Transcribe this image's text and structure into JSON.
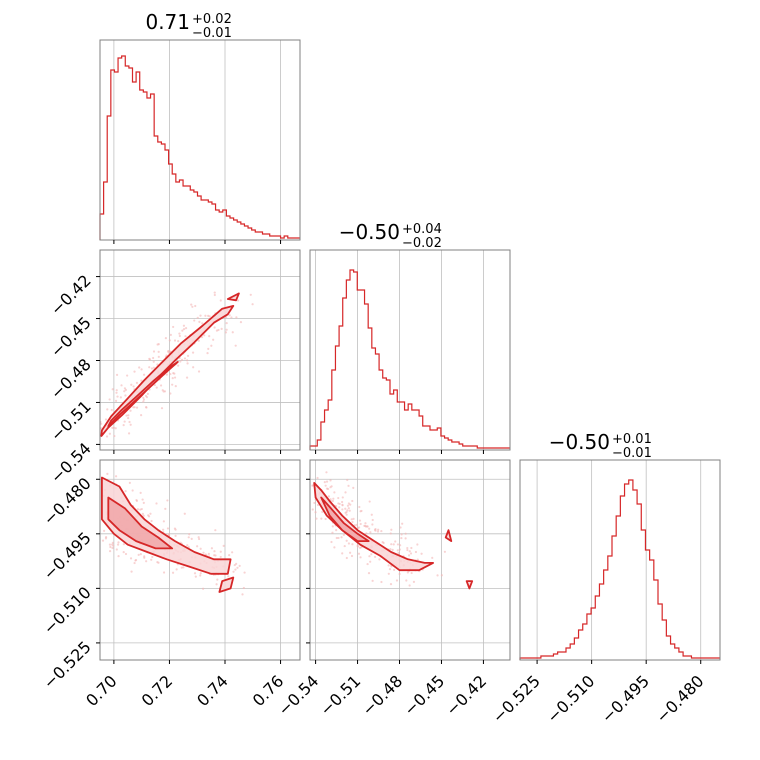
{
  "colors": {
    "series": "#d62728",
    "fill_light": "#f9d5d6",
    "fill_mid": "#f0a6a8",
    "scatter": "#f3b5b6",
    "grid": "#c0c0c0",
    "frame": "#808080"
  },
  "chart_data": [
    {
      "type": "histogram",
      "panel": "row1-col1",
      "title": {
        "value": "0.71",
        "plus": "+0.02",
        "minus": "−0.01"
      },
      "xlim": [
        0.695,
        0.767
      ],
      "grid": true,
      "bins": {
        "start": 0.695,
        "width": 0.0013,
        "counts": [
          0.13,
          0.29,
          0.62,
          0.85,
          0.84,
          0.91,
          0.92,
          0.87,
          0.86,
          0.79,
          0.84,
          0.75,
          0.74,
          0.71,
          0.73,
          0.52,
          0.49,
          0.48,
          0.45,
          0.38,
          0.33,
          0.29,
          0.3,
          0.27,
          0.27,
          0.25,
          0.24,
          0.22,
          0.2,
          0.2,
          0.19,
          0.18,
          0.15,
          0.14,
          0.15,
          0.12,
          0.11,
          0.1,
          0.09,
          0.08,
          0.07,
          0.06,
          0.05,
          0.04,
          0.04,
          0.03,
          0.03,
          0.02,
          0.02,
          0.02,
          0.01,
          0.02,
          0.01,
          0.01,
          0.01,
          0.01
        ]
      },
      "x_ticks": [
        {
          "value": 0.7,
          "label": "0.70"
        },
        {
          "value": 0.72,
          "label": "0.72"
        },
        {
          "value": 0.74,
          "label": "0.74"
        },
        {
          "value": 0.76,
          "label": "0.76"
        }
      ]
    },
    {
      "type": "histogram",
      "panel": "row2-col2",
      "title": {
        "value": "−0.50",
        "plus": "+0.04",
        "minus": "−0.02"
      },
      "xlim": [
        -0.544,
        -0.401
      ],
      "grid": true,
      "bins": {
        "start": -0.544,
        "width": 0.0026,
        "counts": [
          0.02,
          0.02,
          0.05,
          0.14,
          0.2,
          0.25,
          0.4,
          0.52,
          0.62,
          0.76,
          0.85,
          0.9,
          0.89,
          0.8,
          0.8,
          0.73,
          0.61,
          0.51,
          0.48,
          0.4,
          0.36,
          0.35,
          0.28,
          0.3,
          0.24,
          0.24,
          0.2,
          0.23,
          0.2,
          0.2,
          0.17,
          0.12,
          0.12,
          0.1,
          0.1,
          0.11,
          0.07,
          0.06,
          0.05,
          0.04,
          0.04,
          0.03,
          0.02,
          0.02,
          0.02,
          0.02,
          0.01,
          0.01,
          0.01,
          0.01,
          0.01,
          0.01,
          0.01,
          0.01,
          0.01
        ]
      },
      "x_ticks": [
        {
          "value": -0.54,
          "label": "−0.54"
        },
        {
          "value": -0.51,
          "label": "−0.51"
        },
        {
          "value": -0.48,
          "label": "−0.48"
        },
        {
          "value": -0.45,
          "label": "−0.45"
        },
        {
          "value": -0.42,
          "label": "−0.42"
        }
      ]
    },
    {
      "type": "histogram",
      "panel": "row3-col3",
      "title": {
        "value": "−0.50",
        "plus": "+0.01",
        "minus": "−0.01"
      },
      "xlim": [
        -0.5297,
        -0.4747
      ],
      "grid": true,
      "bins": {
        "start": -0.5297,
        "width": 0.00115,
        "counts": [
          0.01,
          0.01,
          0.01,
          0.01,
          0.01,
          0.02,
          0.02,
          0.02,
          0.03,
          0.04,
          0.04,
          0.06,
          0.08,
          0.11,
          0.15,
          0.18,
          0.23,
          0.26,
          0.32,
          0.38,
          0.45,
          0.52,
          0.62,
          0.72,
          0.82,
          0.88,
          0.9,
          0.85,
          0.78,
          0.65,
          0.55,
          0.5,
          0.4,
          0.28,
          0.2,
          0.12,
          0.08,
          0.06,
          0.04,
          0.02,
          0.02,
          0.01,
          0.01,
          0.01,
          0.01,
          0.01,
          0.01,
          0.01
        ]
      },
      "x_ticks": [
        {
          "value": -0.525,
          "label": "−0.525"
        },
        {
          "value": -0.51,
          "label": "−0.510"
        },
        {
          "value": -0.495,
          "label": "−0.495"
        },
        {
          "value": -0.48,
          "label": "−0.480"
        }
      ]
    },
    {
      "type": "contour",
      "panel": "row2-col1",
      "xlim": [
        0.695,
        0.767
      ],
      "ylim": [
        -0.544,
        -0.401
      ],
      "grid": true,
      "y_ticks": [
        {
          "value": -0.42,
          "label": "−0.42"
        },
        {
          "value": -0.45,
          "label": "−0.45"
        },
        {
          "value": -0.48,
          "label": "−0.48"
        },
        {
          "value": -0.51,
          "label": "−0.51"
        },
        {
          "value": -0.54,
          "label": "−0.54"
        }
      ],
      "contours": [
        {
          "level": "outer",
          "points": [
            [
              0.6955,
              -0.534
            ],
            [
              0.698,
              -0.528
            ],
            [
              0.703,
              -0.519
            ],
            [
              0.71,
              -0.505
            ],
            [
              0.716,
              -0.492
            ],
            [
              0.722,
              -0.48
            ],
            [
              0.729,
              -0.467
            ],
            [
              0.736,
              -0.453
            ],
            [
              0.741,
              -0.447
            ],
            [
              0.743,
              -0.441
            ],
            [
              0.739,
              -0.443
            ],
            [
              0.732,
              -0.455
            ],
            [
              0.724,
              -0.468
            ],
            [
              0.717,
              -0.482
            ],
            [
              0.711,
              -0.494
            ],
            [
              0.705,
              -0.507
            ],
            [
              0.699,
              -0.52
            ],
            [
              0.6957,
              -0.53
            ]
          ]
        },
        {
          "level": "inner",
          "points": [
            [
              0.698,
              -0.527
            ],
            [
              0.702,
              -0.519
            ],
            [
              0.707,
              -0.51
            ],
            [
              0.713,
              -0.499
            ],
            [
              0.719,
              -0.488
            ],
            [
              0.723,
              -0.481
            ],
            [
              0.72,
              -0.485
            ],
            [
              0.714,
              -0.495
            ],
            [
              0.708,
              -0.506
            ],
            [
              0.703,
              -0.515
            ],
            [
              0.699,
              -0.523
            ]
          ]
        },
        {
          "level": "island",
          "points": [
            [
              0.741,
              -0.436
            ],
            [
              0.745,
              -0.432
            ],
            [
              0.744,
              -0.437
            ]
          ]
        }
      ],
      "scatter_density": {
        "center_x": 0.712,
        "center_y": -0.495,
        "slope": 3.0
      }
    },
    {
      "type": "contour",
      "panel": "row3-col1",
      "xlim": [
        0.695,
        0.767
      ],
      "ylim": [
        -0.5297,
        -0.4747
      ],
      "grid": true,
      "y_ticks": [
        {
          "value": -0.48,
          "label": "−0.480"
        },
        {
          "value": -0.495,
          "label": "−0.495"
        },
        {
          "value": -0.51,
          "label": "−0.510"
        },
        {
          "value": -0.525,
          "label": "−0.525"
        }
      ],
      "contours": [
        {
          "level": "outer",
          "points": [
            [
              0.6957,
              -0.4795
            ],
            [
              0.702,
              -0.482
            ],
            [
              0.706,
              -0.487
            ],
            [
              0.711,
              -0.491
            ],
            [
              0.716,
              -0.494
            ],
            [
              0.722,
              -0.497
            ],
            [
              0.729,
              -0.5
            ],
            [
              0.736,
              -0.502
            ],
            [
              0.742,
              -0.502
            ],
            [
              0.741,
              -0.506
            ],
            [
              0.735,
              -0.506
            ],
            [
              0.727,
              -0.504
            ],
            [
              0.719,
              -0.502
            ],
            [
              0.712,
              -0.5
            ],
            [
              0.705,
              -0.498
            ],
            [
              0.7,
              -0.495
            ],
            [
              0.6957,
              -0.491
            ]
          ]
        },
        {
          "level": "inner",
          "points": [
            [
              0.698,
              -0.485
            ],
            [
              0.704,
              -0.488
            ],
            [
              0.71,
              -0.493
            ],
            [
              0.716,
              -0.496
            ],
            [
              0.721,
              -0.499
            ],
            [
              0.715,
              -0.499
            ],
            [
              0.708,
              -0.497
            ],
            [
              0.702,
              -0.494
            ],
            [
              0.698,
              -0.491
            ]
          ]
        },
        {
          "level": "island",
          "points": [
            [
              0.739,
              -0.508
            ],
            [
              0.743,
              -0.507
            ],
            [
              0.742,
              -0.51
            ],
            [
              0.738,
              -0.511
            ]
          ]
        }
      ]
    },
    {
      "type": "contour",
      "panel": "row3-col2",
      "xlim": [
        -0.544,
        -0.401
      ],
      "ylim": [
        -0.5297,
        -0.4747
      ],
      "grid": true,
      "contours": [
        {
          "level": "outer",
          "points": [
            [
              -0.541,
              -0.481
            ],
            [
              -0.536,
              -0.483
            ],
            [
              -0.53,
              -0.486
            ],
            [
              -0.521,
              -0.49
            ],
            [
              -0.51,
              -0.494
            ],
            [
              -0.498,
              -0.497
            ],
            [
              -0.486,
              -0.5
            ],
            [
              -0.474,
              -0.502
            ],
            [
              -0.462,
              -0.503
            ],
            [
              -0.456,
              -0.503
            ],
            [
              -0.466,
              -0.505
            ],
            [
              -0.48,
              -0.505
            ],
            [
              -0.494,
              -0.501
            ],
            [
              -0.508,
              -0.498
            ],
            [
              -0.521,
              -0.494
            ],
            [
              -0.532,
              -0.49
            ],
            [
              -0.54,
              -0.485
            ]
          ]
        },
        {
          "level": "inner",
          "points": [
            [
              -0.536,
              -0.485
            ],
            [
              -0.529,
              -0.488
            ],
            [
              -0.52,
              -0.492
            ],
            [
              -0.51,
              -0.495
            ],
            [
              -0.502,
              -0.497
            ],
            [
              -0.51,
              -0.497
            ],
            [
              -0.521,
              -0.494
            ],
            [
              -0.53,
              -0.49
            ]
          ]
        },
        {
          "level": "island",
          "points": [
            [
              -0.447,
              -0.496
            ],
            [
              -0.445,
              -0.494
            ],
            [
              -0.443,
              -0.497
            ]
          ]
        },
        {
          "level": "island",
          "points": [
            [
              -0.432,
              -0.508
            ],
            [
              -0.428,
              -0.508
            ],
            [
              -0.43,
              -0.51
            ]
          ]
        }
      ]
    }
  ]
}
